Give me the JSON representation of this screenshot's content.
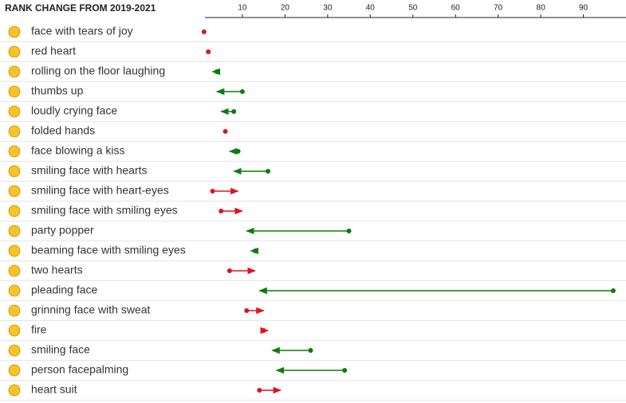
{
  "chart_data": {
    "type": "arrow",
    "title": "RANK CHANGE FROM 2019-2021",
    "categories": [
      "face with tears of joy",
      "red heart",
      "rolling on the floor laughing",
      "thumbs up",
      "loudly crying face",
      "folded hands",
      "face blowing a kiss",
      "smiling face with hearts",
      "smiling face with heart-eyes",
      "smiling face with smiling eyes",
      "party popper",
      "beaming face with smiling eyes",
      "two hearts",
      "pleading face",
      "grinning face with sweat",
      "fire",
      "smiling face",
      "person facepalming",
      "heart suit"
    ],
    "start": [
      1,
      2,
      4,
      10,
      8,
      6,
      9,
      16,
      3,
      5,
      35,
      13,
      7,
      97,
      11,
      15,
      26,
      34,
      14
    ],
    "end": [
      1,
      2,
      3,
      4,
      5,
      6,
      7,
      8,
      9,
      10,
      11,
      12,
      13,
      14,
      15,
      16,
      17,
      18,
      19
    ],
    "improved_color": "#0a7d0a",
    "worsened_color": "#e0141e",
    "xlim": [
      0,
      100
    ],
    "xticks": [
      10,
      20,
      30,
      40,
      50,
      60,
      70,
      80,
      90
    ]
  }
}
